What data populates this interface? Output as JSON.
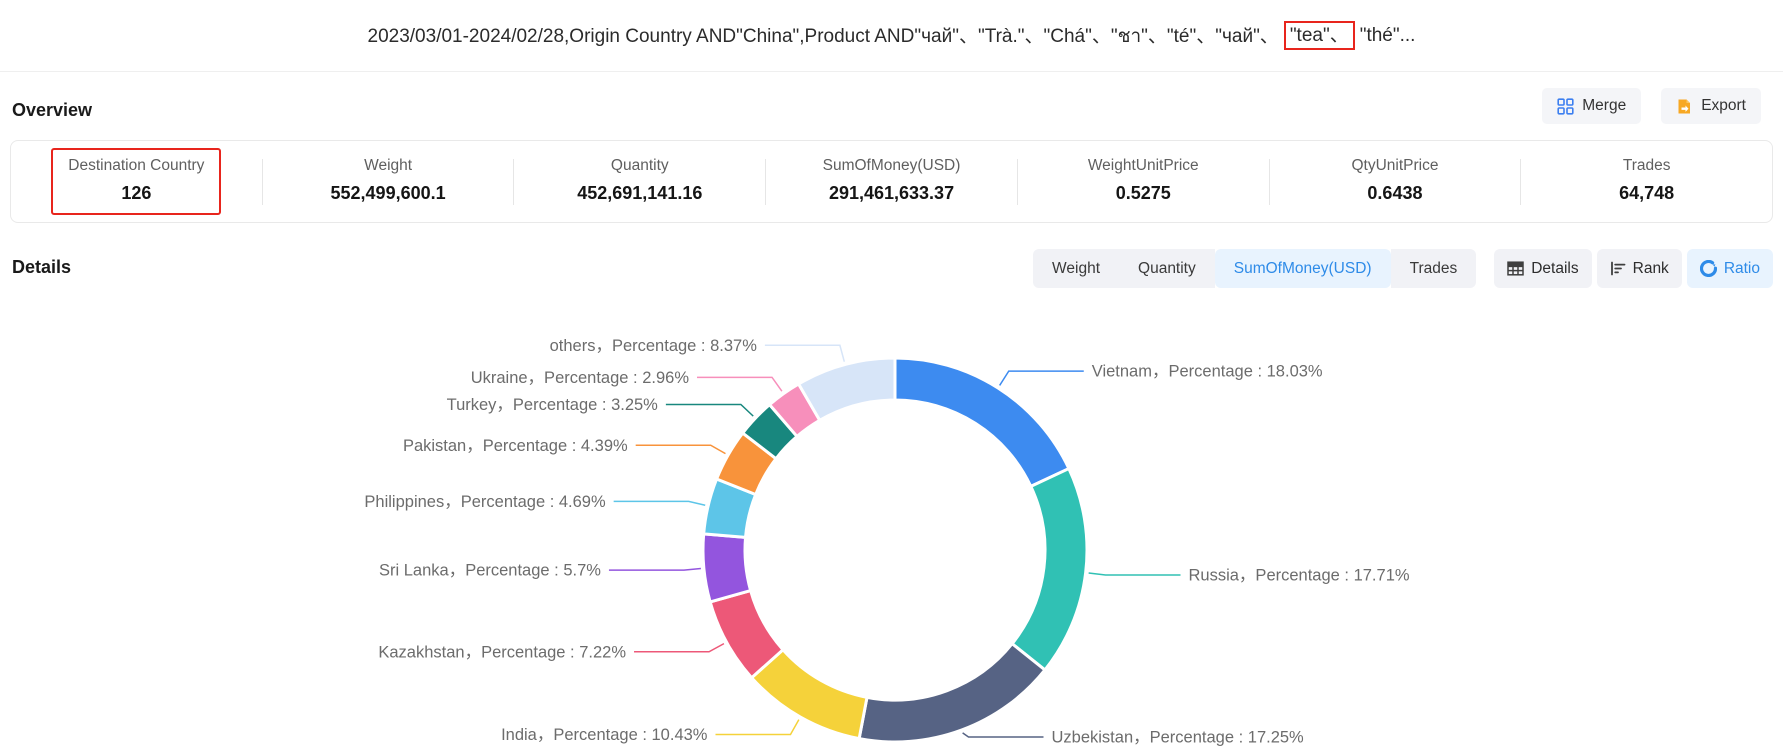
{
  "title": {
    "prefix": "2023/03/01-2024/02/28,Origin Country AND\"China\",Product AND\"чай\"、\"Trà.\"、\"Chá\"、\"ชา\"、\"té\"、\"чай\"、",
    "highlighted": "\"tea\"、",
    "suffix": "\"thé\"..."
  },
  "overview": {
    "heading": "Overview",
    "actions": [
      {
        "label": "Merge",
        "icon": "merge-grid-icon"
      },
      {
        "label": "Export",
        "icon": "export-doc-icon"
      }
    ],
    "stats": [
      {
        "label": "Destination Country",
        "value": "126",
        "highlighted": true
      },
      {
        "label": "Weight",
        "value": "552,499,600.1"
      },
      {
        "label": "Quantity",
        "value": "452,691,141.16"
      },
      {
        "label": "SumOfMoney(USD)",
        "value": "291,461,633.37"
      },
      {
        "label": "WeightUnitPrice",
        "value": "0.5275"
      },
      {
        "label": "QtyUnitPrice",
        "value": "0.6438"
      },
      {
        "label": "Trades",
        "value": "64,748"
      }
    ]
  },
  "details": {
    "heading": "Details",
    "metric_tabs": [
      {
        "label": "Weight",
        "active": false
      },
      {
        "label": "Quantity",
        "active": false
      },
      {
        "label": "SumOfMoney(USD)",
        "active": true
      },
      {
        "label": "Trades",
        "active": false
      }
    ],
    "view_tabs": [
      {
        "label": "Details",
        "icon": "table-icon",
        "active": false
      },
      {
        "label": "Rank",
        "icon": "rank-bars-icon",
        "active": false
      },
      {
        "label": "Ratio",
        "icon": "donut-icon",
        "active": true
      }
    ]
  },
  "chart_data": {
    "type": "pie",
    "subtype": "donut",
    "title": "",
    "legend": "none",
    "start_angle_deg": 0,
    "direction": "clockwise",
    "inner_radius_ratio": 0.78,
    "label_format": "{name}，Percentage : {value}%",
    "series": [
      {
        "name": "Vietnam",
        "percentage": "18.03",
        "color": "#3D8BF0"
      },
      {
        "name": "Russia",
        "percentage": "17.71",
        "color": "#30C1B4"
      },
      {
        "name": "Uzbekistan",
        "percentage": "17.25",
        "color": "#566384"
      },
      {
        "name": "India",
        "percentage": "10.43",
        "color": "#F5D23A"
      },
      {
        "name": "Kazakhstan",
        "percentage": "7.22",
        "color": "#ED5878"
      },
      {
        "name": "Sri Lanka",
        "percentage": "5.7",
        "color": "#9355DE"
      },
      {
        "name": "Philippines",
        "percentage": "4.69",
        "color": "#5DC5E8"
      },
      {
        "name": "Pakistan",
        "percentage": "4.39",
        "color": "#F8933B"
      },
      {
        "name": "Turkey",
        "percentage": "3.25",
        "color": "#18877E"
      },
      {
        "name": "Ukraine",
        "percentage": "2.96",
        "color": "#F78FBB"
      },
      {
        "name": "others",
        "percentage": "8.37",
        "color": "#D7E5F8"
      }
    ]
  },
  "colors": {
    "highlight_red": "#E8251D",
    "active_blue": "#2E8BE8",
    "active_blue_bg": "#E8F3FE",
    "button_gray_bg": "#F1F2F6",
    "merge_icon_blue": "#3C7FF0",
    "export_icon_orange": "#F7A823",
    "chart_label_gray": "#6C6C6C"
  }
}
